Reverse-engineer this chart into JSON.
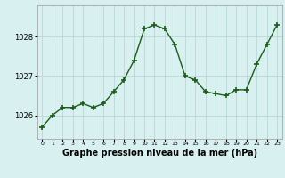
{
  "hours": [
    0,
    1,
    2,
    3,
    4,
    5,
    6,
    7,
    8,
    9,
    10,
    11,
    12,
    13,
    14,
    15,
    16,
    17,
    18,
    19,
    20,
    21,
    22,
    23
  ],
  "pressure": [
    1025.7,
    1026.0,
    1026.2,
    1026.2,
    1026.3,
    1026.2,
    1026.3,
    1026.6,
    1026.9,
    1027.4,
    1028.2,
    1028.3,
    1028.2,
    1027.8,
    1027.0,
    1026.9,
    1026.6,
    1026.55,
    1026.5,
    1026.65,
    1026.65,
    1027.3,
    1027.8,
    1028.3
  ],
  "line_color": "#1a5c1a",
  "marker_color": "#1a5c1a",
  "bg_color": "#d8f0f0",
  "grid_color": "#b8d8d8",
  "xlabel": "Graphe pression niveau de la mer (hPa)",
  "xlabel_fontsize": 7.0,
  "yticks": [
    1026,
    1027,
    1028
  ],
  "ylim": [
    1025.4,
    1028.8
  ],
  "xlim": [
    -0.5,
    23.5
  ]
}
